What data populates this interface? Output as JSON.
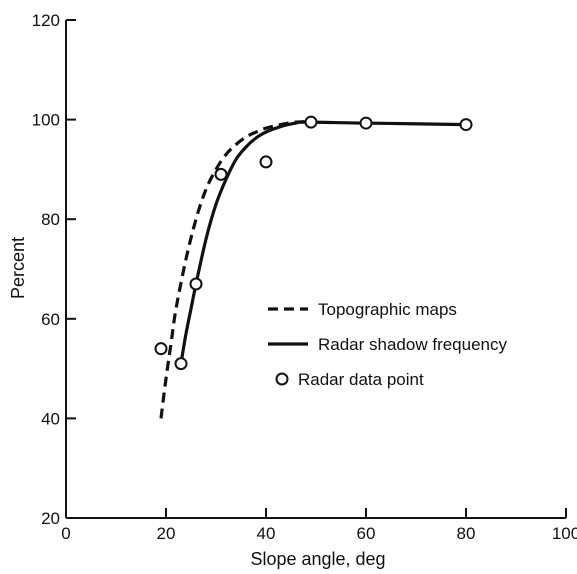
{
  "chart_data": {
    "type": "line",
    "title": "",
    "xlabel": "Slope angle, deg",
    "ylabel": "Percent",
    "xlim": [
      0,
      100
    ],
    "ylim": [
      20,
      120
    ],
    "x_ticks": [
      "0",
      "20",
      "40",
      "60",
      "80",
      "100"
    ],
    "y_ticks": [
      "20",
      "40",
      "60",
      "80",
      "100",
      "120"
    ],
    "grid": false,
    "legend_position": "center-right",
    "series": [
      {
        "name": "Topographic maps",
        "style": "dashed",
        "color": "#111111",
        "x": [
          19,
          20,
          21,
          22,
          24,
          26,
          28,
          30,
          32,
          34,
          36,
          38,
          40,
          42,
          44,
          46,
          48
        ],
        "y": [
          40,
          48,
          55,
          62,
          72,
          80,
          86,
          90,
          93,
          95,
          96.5,
          97.5,
          98.3,
          98.8,
          99.2,
          99.5,
          99.6
        ]
      },
      {
        "name": "Radar shadow frequency",
        "style": "solid",
        "color": "#111111",
        "x": [
          23,
          24,
          25,
          26,
          28,
          30,
          32,
          34,
          36,
          38,
          40,
          42,
          44,
          46,
          48,
          60,
          80
        ],
        "y": [
          51,
          57,
          62,
          67,
          76,
          83,
          88,
          92,
          94.5,
          96.3,
          97.5,
          98.3,
          98.9,
          99.3,
          99.5,
          99.3,
          99
        ]
      },
      {
        "name": "Radar data point",
        "style": "marker",
        "marker": "open-circle",
        "color": "#111111",
        "x": [
          19,
          23,
          26,
          31,
          40,
          49,
          60,
          80
        ],
        "y": [
          54,
          51,
          67,
          89,
          91.5,
          99.5,
          99.3,
          99
        ]
      }
    ]
  }
}
